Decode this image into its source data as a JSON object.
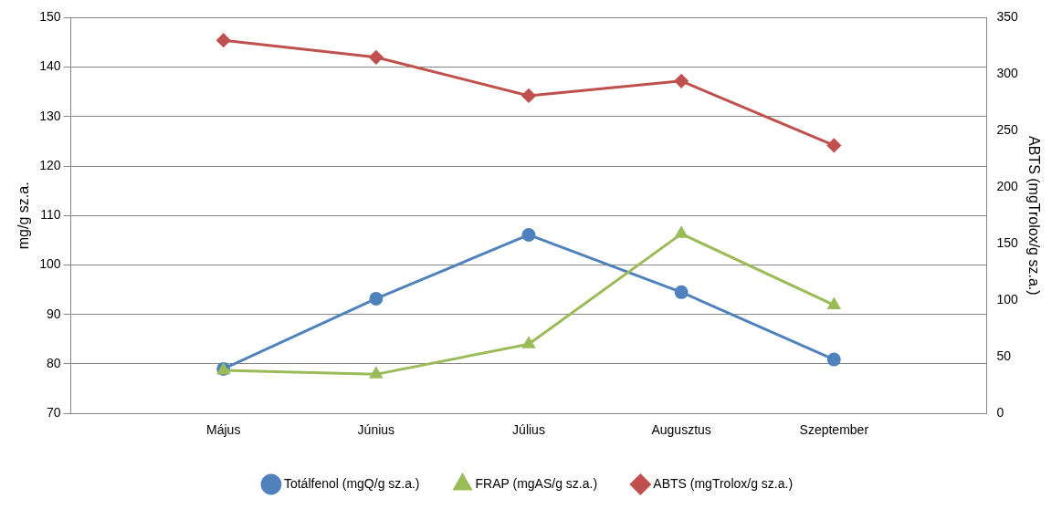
{
  "chart_data": {
    "type": "line",
    "categories": [
      null,
      "Május",
      "Június",
      "Július",
      "Augusztus",
      "Szeptember",
      null
    ],
    "ylabel": "mg/g sz.a.",
    "y2label": "ABTS (mgTrolox/g sz.a.)",
    "ylim": [
      70,
      150
    ],
    "yticks": [
      70,
      80,
      90,
      100,
      110,
      120,
      130,
      140,
      150
    ],
    "y2lim": [
      0,
      350
    ],
    "y2ticks": [
      0,
      50,
      100,
      150,
      200,
      250,
      300,
      350
    ],
    "grid": "y",
    "legend": "bottom",
    "line_style": "solid",
    "series": [
      {
        "name": "Totálfenol (mgQ/g sz.a.)",
        "color": "#4f81bd",
        "marker": "circle",
        "values": [
          null,
          79.0,
          93.2,
          106.1,
          94.5,
          80.9,
          null
        ]
      },
      {
        "name": "FRAP (mgAS/g sz.a.)",
        "color": "#9bbb59",
        "marker": "triangle",
        "values": [
          null,
          78.7,
          77.9,
          84.0,
          106.3,
          91.9,
          null
        ]
      },
      {
        "name": "ABTS (mgTrolox/g sz.a.)",
        "color": "#c0504d",
        "marker": "diamond",
        "axis": "y2",
        "values": [
          null,
          330,
          315,
          281,
          294,
          237,
          null
        ]
      }
    ]
  }
}
